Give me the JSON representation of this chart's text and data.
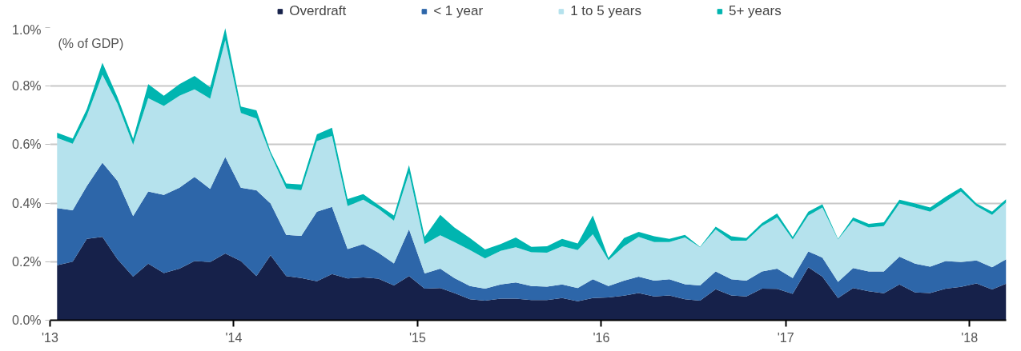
{
  "chart_data": {
    "type": "area",
    "stacked": true,
    "ylabel": "(% of GDP)",
    "x": [
      "2013-01-15",
      "2013-02-15",
      "2013-03-15",
      "2013-04-15",
      "2013-05-15",
      "2013-06-15",
      "2013-07-15",
      "2013-08-15",
      "2013-09-15",
      "2013-10-15",
      "2013-11-15",
      "2013-12-15",
      "2014-01-15",
      "2014-02-15",
      "2014-03-15",
      "2014-04-15",
      "2014-05-15",
      "2014-06-15",
      "2014-07-15",
      "2014-08-15",
      "2014-09-15",
      "2014-10-15",
      "2014-11-15",
      "2014-12-15",
      "2015-01-15",
      "2015-02-15",
      "2015-03-15",
      "2015-04-15",
      "2015-05-15",
      "2015-06-15",
      "2015-07-15",
      "2015-08-15",
      "2015-09-15",
      "2015-10-15",
      "2015-11-15",
      "2015-12-15",
      "2016-01-15",
      "2016-02-15",
      "2016-03-15",
      "2016-04-15",
      "2016-05-15",
      "2016-06-15",
      "2016-07-15",
      "2016-08-15",
      "2016-09-15",
      "2016-10-15",
      "2016-11-15",
      "2016-12-15",
      "2017-01-15",
      "2017-02-15",
      "2017-03-15",
      "2017-04-15",
      "2017-05-15",
      "2017-06-15",
      "2017-07-15",
      "2017-08-15",
      "2017-09-15",
      "2017-10-15",
      "2017-11-15",
      "2017-12-15",
      "2018-01-15",
      "2018-02-15",
      "2018-03-15"
    ],
    "series": [
      {
        "name": "Overdraft",
        "color": "#16214a",
        "values": [
          0.188,
          0.2,
          0.278,
          0.285,
          0.208,
          0.149,
          0.193,
          0.161,
          0.176,
          0.202,
          0.199,
          0.228,
          0.202,
          0.151,
          0.222,
          0.151,
          0.144,
          0.133,
          0.158,
          0.143,
          0.146,
          0.142,
          0.119,
          0.151,
          0.108,
          0.11,
          0.093,
          0.072,
          0.067,
          0.074,
          0.074,
          0.069,
          0.069,
          0.076,
          0.065,
          0.076,
          0.078,
          0.084,
          0.093,
          0.081,
          0.085,
          0.072,
          0.067,
          0.106,
          0.085,
          0.081,
          0.108,
          0.107,
          0.09,
          0.181,
          0.149,
          0.076,
          0.11,
          0.099,
          0.092,
          0.122,
          0.095,
          0.093,
          0.108,
          0.114,
          0.126,
          0.105,
          0.125
        ]
      },
      {
        "name": "< 1 year",
        "color": "#2d66a9",
        "values": [
          0.195,
          0.176,
          0.18,
          0.253,
          0.268,
          0.207,
          0.247,
          0.267,
          0.277,
          0.288,
          0.25,
          0.33,
          0.251,
          0.293,
          0.177,
          0.141,
          0.144,
          0.238,
          0.229,
          0.1,
          0.114,
          0.089,
          0.075,
          0.16,
          0.052,
          0.066,
          0.051,
          0.045,
          0.041,
          0.048,
          0.055,
          0.048,
          0.046,
          0.046,
          0.045,
          0.064,
          0.039,
          0.051,
          0.056,
          0.054,
          0.055,
          0.051,
          0.052,
          0.061,
          0.055,
          0.054,
          0.059,
          0.069,
          0.054,
          0.054,
          0.065,
          0.055,
          0.068,
          0.068,
          0.075,
          0.095,
          0.098,
          0.09,
          0.094,
          0.085,
          0.078,
          0.076,
          0.083
        ]
      },
      {
        "name": "1 to 5 years",
        "color": "#b5e2ed",
        "values": [
          0.24,
          0.227,
          0.24,
          0.301,
          0.263,
          0.244,
          0.319,
          0.304,
          0.314,
          0.299,
          0.308,
          0.399,
          0.255,
          0.245,
          0.168,
          0.158,
          0.156,
          0.241,
          0.243,
          0.147,
          0.152,
          0.15,
          0.146,
          0.192,
          0.1,
          0.114,
          0.123,
          0.123,
          0.103,
          0.115,
          0.12,
          0.115,
          0.116,
          0.131,
          0.13,
          0.154,
          0.088,
          0.118,
          0.136,
          0.132,
          0.127,
          0.16,
          0.13,
          0.143,
          0.132,
          0.137,
          0.155,
          0.175,
          0.132,
          0.123,
          0.171,
          0.145,
          0.162,
          0.15,
          0.155,
          0.182,
          0.192,
          0.188,
          0.203,
          0.241,
          0.186,
          0.179,
          0.195
        ]
      },
      {
        "name": "5+ years",
        "color": "#00b5b0",
        "values": [
          0.018,
          0.018,
          0.023,
          0.041,
          0.023,
          0.02,
          0.048,
          0.035,
          0.04,
          0.046,
          0.039,
          0.041,
          0.022,
          0.028,
          0.009,
          0.017,
          0.02,
          0.023,
          0.028,
          0.024,
          0.019,
          0.013,
          0.018,
          0.027,
          0.025,
          0.07,
          0.05,
          0.041,
          0.031,
          0.023,
          0.034,
          0.019,
          0.022,
          0.025,
          0.022,
          0.064,
          0.008,
          0.028,
          0.017,
          0.02,
          0.011,
          0.009,
          0.002,
          0.01,
          0.015,
          0.009,
          0.01,
          0.014,
          0.009,
          0.013,
          0.011,
          0.002,
          0.011,
          0.012,
          0.013,
          0.013,
          0.014,
          0.014,
          0.017,
          0.013,
          0.009,
          0.011,
          0.011
        ]
      }
    ],
    "xlim": [
      "2013-01-01",
      "2018-03-15"
    ],
    "xticks": [
      {
        "value": "2013-01-01",
        "label": "'13"
      },
      {
        "value": "2014-01-01",
        "label": "'14"
      },
      {
        "value": "2015-01-01",
        "label": "'15"
      },
      {
        "value": "2016-01-01",
        "label": "'16"
      },
      {
        "value": "2017-01-01",
        "label": "'17"
      },
      {
        "value": "2018-01-01",
        "label": "'18"
      }
    ],
    "ylim": [
      0,
      1.0
    ],
    "yticks": [
      {
        "value": 0,
        "label": "0.0%"
      },
      {
        "value": 0.2,
        "label": "0.2%"
      },
      {
        "value": 0.4,
        "label": "0.4%"
      },
      {
        "value": 0.6,
        "label": "0.6%"
      },
      {
        "value": 0.8,
        "label": "0.8%"
      },
      {
        "value": 1.0,
        "label": "1.0%"
      }
    ],
    "grid": "y",
    "legend": "top"
  }
}
